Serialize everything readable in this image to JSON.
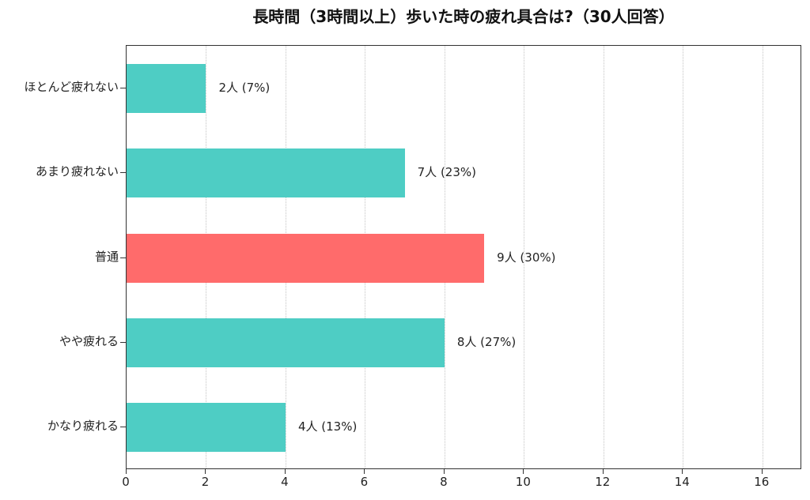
{
  "chart_data": {
    "type": "bar",
    "orientation": "horizontal",
    "title": "長時間（3時間以上）歩いた時の疲れ具合は?（30人回答）",
    "xlabel": "",
    "ylabel": "",
    "xlim": [
      0,
      17
    ],
    "xticks": [
      0,
      2,
      4,
      6,
      8,
      10,
      12,
      14,
      16
    ],
    "grid": {
      "x": true,
      "y": false,
      "style": "dotted"
    },
    "legend": null,
    "categories": [
      "ほとんど疲れない",
      "あまり疲れない",
      "普通",
      "やや疲れる",
      "かなり疲れる"
    ],
    "values": [
      2,
      7,
      9,
      8,
      4
    ],
    "percentages": [
      7,
      23,
      30,
      27,
      13
    ],
    "bar_labels": [
      "2人 (7%)",
      "7人 (23%)",
      "9人 (30%)",
      "8人 (27%)",
      "4人 (13%)"
    ],
    "colors": [
      "#4ecdc4",
      "#4ecdc4",
      "#ff6b6b",
      "#4ecdc4",
      "#4ecdc4"
    ],
    "highlight_index": 2,
    "total_respondents": 30
  },
  "xtick_labels": [
    "0",
    "2",
    "4",
    "6",
    "8",
    "10",
    "12",
    "14",
    "16"
  ]
}
